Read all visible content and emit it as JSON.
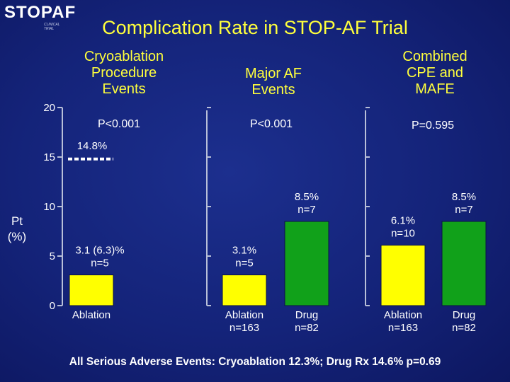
{
  "logo": {
    "brand": "STOPAF",
    "sub": "CLINICAL TRIAL"
  },
  "title": "Complication Rate in STOP-AF Trial",
  "footnote": "All Serious Adverse Events: Cryoablation 12.3%; Drug Rx 14.6% p=0.69",
  "y_axis": {
    "label_line1": "Pt",
    "label_line2": "(%)"
  },
  "colors": {
    "cryoablation": "#ffff00",
    "drug": "#11a11a",
    "title": "#ffff3c",
    "background": "#142379"
  },
  "chart_data": {
    "type": "bar",
    "ylabel": "Pt (%)",
    "ylim": [
      0,
      20
    ],
    "yticks": [
      "0",
      "5",
      "10",
      "15",
      "20"
    ],
    "grid": false,
    "groups": [
      {
        "title_lines": [
          "Cryoablation",
          "Procedure",
          "Events"
        ],
        "pvalue": "P<0.001",
        "bars": [
          {
            "series": "Cryoablation",
            "value": 3.1,
            "label_lines": [
              "3.1 (6.3)%",
              "n=5"
            ],
            "cat_lines": [
              "Ablation"
            ]
          }
        ],
        "dashed_marker": {
          "value": 14.8,
          "label": "14.8%"
        }
      },
      {
        "title_lines": [
          "Major AF",
          "Events"
        ],
        "pvalue": "P<0.001",
        "bars": [
          {
            "series": "Cryoablation",
            "value": 3.1,
            "label_lines": [
              "3.1%",
              "n=5"
            ],
            "cat_lines": [
              "Ablation",
              "n=163"
            ]
          },
          {
            "series": "Drug",
            "value": 8.5,
            "label_lines": [
              "8.5%",
              "n=7"
            ],
            "cat_lines": [
              "Drug",
              "n=82"
            ]
          }
        ]
      },
      {
        "title_lines": [
          "Combined",
          "CPE and",
          "MAFE"
        ],
        "pvalue": "P=0.595",
        "bars": [
          {
            "series": "Cryoablation",
            "value": 6.1,
            "label_lines": [
              "6.1%",
              "n=10"
            ],
            "cat_lines": [
              "Ablation",
              "n=163"
            ]
          },
          {
            "series": "Drug",
            "value": 8.5,
            "label_lines": [
              "8.5%",
              "n=7"
            ],
            "cat_lines": [
              "Drug",
              "n=82"
            ]
          }
        ]
      }
    ]
  }
}
